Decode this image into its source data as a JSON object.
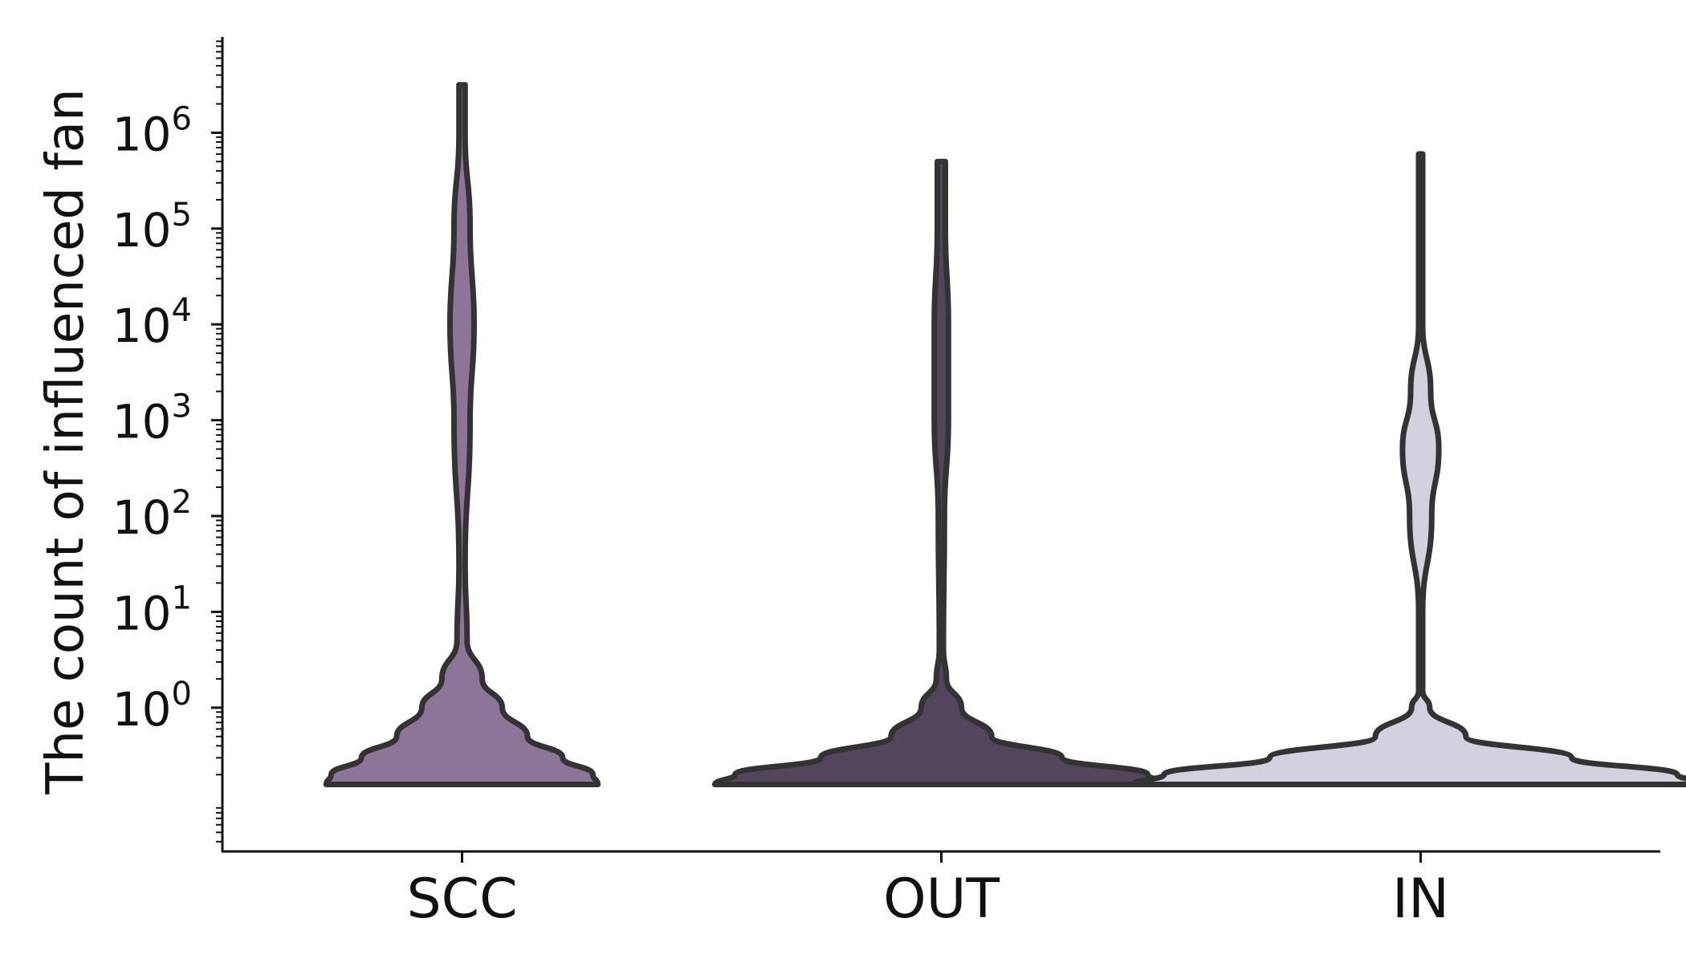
{
  "chart_data": {
    "type": "violin",
    "title": "",
    "xlabel": "",
    "ylabel": "The count of influenced fan",
    "yscale": "log",
    "ylim": [
      0.0316,
      10000000
    ],
    "yticks": [
      {
        "value": 1,
        "base": "10",
        "exp": "0"
      },
      {
        "value": 10,
        "base": "10",
        "exp": "1"
      },
      {
        "value": 100,
        "base": "10",
        "exp": "2"
      },
      {
        "value": 1000,
        "base": "10",
        "exp": "3"
      },
      {
        "value": 10000,
        "base": "10",
        "exp": "4"
      },
      {
        "value": 100000,
        "base": "10",
        "exp": "5"
      },
      {
        "value": 1000000,
        "base": "10",
        "exp": "6"
      }
    ],
    "categories": [
      "SCC",
      "OUT",
      "IN"
    ],
    "series": [
      {
        "category": "SCC",
        "color": "#8c7597",
        "min": 0.158,
        "max": 3160000,
        "density": [
          {
            "y": 0.158,
            "w": 0.27
          },
          {
            "y": 0.2,
            "w": 0.26
          },
          {
            "y": 0.3,
            "w": 0.2
          },
          {
            "y": 0.5,
            "w": 0.13
          },
          {
            "y": 1,
            "w": 0.08
          },
          {
            "y": 2,
            "w": 0.04
          },
          {
            "y": 5,
            "w": 0.01
          },
          {
            "y": 30,
            "w": 0.006
          },
          {
            "y": 1000,
            "w": 0.016
          },
          {
            "y": 10000,
            "w": 0.024
          },
          {
            "y": 100000,
            "w": 0.016
          },
          {
            "y": 1000000,
            "w": 0.006
          },
          {
            "y": 3160000,
            "w": 0.006
          }
        ]
      },
      {
        "category": "OUT",
        "color": "#52465d",
        "min": 0.158,
        "max": 500000,
        "density": [
          {
            "y": 0.158,
            "w": 0.45
          },
          {
            "y": 0.2,
            "w": 0.41
          },
          {
            "y": 0.3,
            "w": 0.24
          },
          {
            "y": 0.5,
            "w": 0.1
          },
          {
            "y": 1,
            "w": 0.04
          },
          {
            "y": 2,
            "w": 0.01
          },
          {
            "y": 4,
            "w": 0.004
          },
          {
            "y": 100,
            "w": 0.006
          },
          {
            "y": 1000,
            "w": 0.014
          },
          {
            "y": 10000,
            "w": 0.014
          },
          {
            "y": 100000,
            "w": 0.008
          },
          {
            "y": 500000,
            "w": 0.008
          }
        ]
      },
      {
        "category": "IN",
        "color": "#d2d1dd",
        "min": 0.158,
        "max": 600000,
        "density": [
          {
            "y": 0.158,
            "w": 0.57
          },
          {
            "y": 0.2,
            "w": 0.51
          },
          {
            "y": 0.3,
            "w": 0.3
          },
          {
            "y": 0.5,
            "w": 0.09
          },
          {
            "y": 1,
            "w": 0.018
          },
          {
            "y": 1.5,
            "w": 0.004
          },
          {
            "y": 10,
            "w": 0.004
          },
          {
            "y": 100,
            "w": 0.022
          },
          {
            "y": 500,
            "w": 0.036
          },
          {
            "y": 2000,
            "w": 0.02
          },
          {
            "y": 10000,
            "w": 0.004
          },
          {
            "y": 600000,
            "w": 0.004
          }
        ]
      }
    ]
  }
}
